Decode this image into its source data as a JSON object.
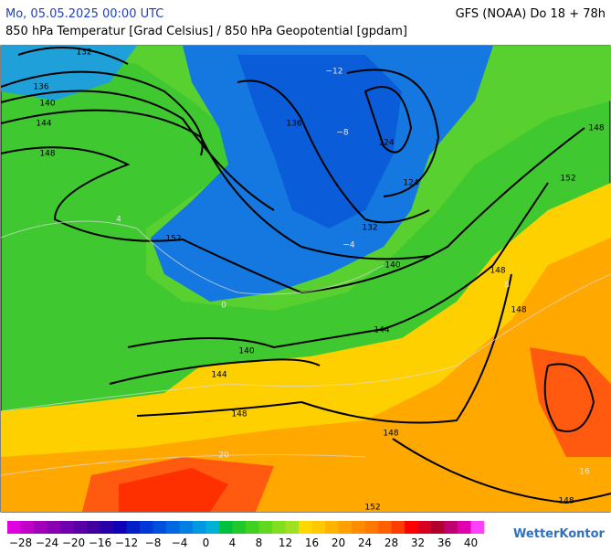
{
  "header": {
    "left": "Mo, 05.05.2025 00:00 UTC",
    "right": "GFS (NOAA) Do 18 + 78h",
    "subtitle": "850 hPa Temperatur [Grad Celsius] / 850 hPa Geopotential [gpdam]"
  },
  "map": {
    "contour_labels": [
      "132",
      "136",
      "140",
      "144",
      "148",
      "152",
      "136",
      "124",
      "124",
      "132",
      "140",
      "144",
      "148",
      "148",
      "140",
      "144",
      "148",
      "148",
      "152",
      "148",
      "152",
      "148"
    ],
    "isotherm_labels": [
      "−12",
      "−8",
      "−4",
      "0",
      "4",
      "8",
      "16",
      "20"
    ]
  },
  "colorbar": {
    "labels": [
      "−28",
      "−24",
      "−20",
      "−16",
      "−12",
      "−8",
      "−4",
      "0",
      "4",
      "8",
      "12",
      "16",
      "20",
      "24",
      "28",
      "32",
      "36",
      "40"
    ],
    "colors": [
      "#e000e0",
      "#c000c8",
      "#a000b8",
      "#8800b0",
      "#7000b0",
      "#5800a8",
      "#4000a0",
      "#2800a8",
      "#1000b8",
      "#0020c8",
      "#0038d8",
      "#0050e0",
      "#0068e0",
      "#0080e0",
      "#0098e0",
      "#00b0d8",
      "#00c040",
      "#20c828",
      "#40d020",
      "#60d820",
      "#80e020",
      "#a0e020",
      "#ffd800",
      "#ffc800",
      "#ffb400",
      "#ffa000",
      "#ff8c00",
      "#ff7800",
      "#ff6000",
      "#ff3c00",
      "#ff0000",
      "#d80020",
      "#b00030",
      "#c00070",
      "#e000b0",
      "#ff40ff"
    ]
  },
  "logo": "WetterKontor"
}
